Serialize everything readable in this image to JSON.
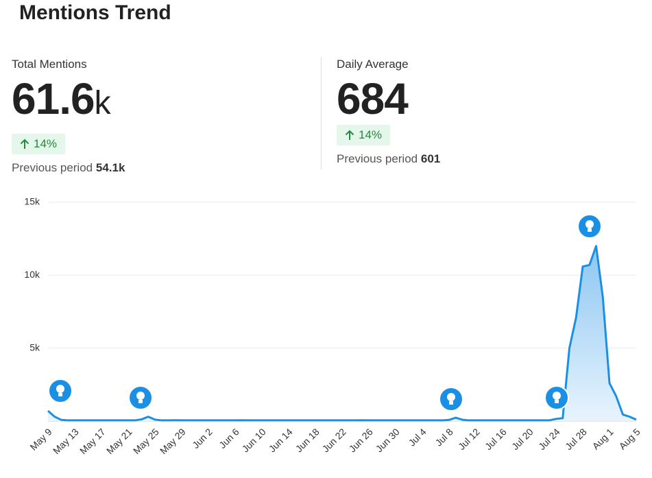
{
  "header": {
    "title": "Mentions Trend"
  },
  "stats": [
    {
      "label": "Total Mentions",
      "value": "61.6",
      "unit": "k",
      "change": "14%",
      "previous_label": "Previous period",
      "previous_value": "54.1k"
    },
    {
      "label": "Daily Average",
      "value": "684",
      "unit": null,
      "change": "14%",
      "previous_label": "Previous period",
      "previous_value": "601"
    }
  ],
  "chart_data": {
    "type": "area",
    "color": "#1a8fe3",
    "categories": [
      "May 9",
      null,
      null,
      null,
      "May 13",
      null,
      null,
      null,
      "May 17",
      null,
      null,
      null,
      "May 21",
      null,
      null,
      null,
      "May 25",
      null,
      null,
      null,
      "May 29",
      null,
      null,
      null,
      "Jun 2",
      null,
      null,
      null,
      "Jun 6",
      null,
      null,
      null,
      "Jun 10",
      null,
      null,
      null,
      "Jun 14",
      null,
      null,
      null,
      "Jun 18",
      null,
      null,
      null,
      "Jun 22",
      null,
      null,
      null,
      "Jun 26",
      null,
      null,
      null,
      "Jun 30",
      null,
      null,
      null,
      "Jul 4",
      null,
      null,
      null,
      "Jul 8",
      null,
      null,
      null,
      "Jul 12",
      null,
      null,
      null,
      "Jul 16",
      null,
      null,
      null,
      "Jul 20",
      null,
      null,
      null,
      "Jul 24",
      null,
      null,
      null,
      "Jul 28",
      null,
      null,
      null,
      "Aug 1",
      null,
      null,
      null,
      "Aug 5"
    ],
    "values": [
      700,
      300,
      80,
      50,
      50,
      50,
      50,
      50,
      50,
      50,
      50,
      50,
      50,
      50,
      120,
      300,
      100,
      50,
      50,
      60,
      50,
      50,
      50,
      50,
      50,
      50,
      50,
      50,
      50,
      60,
      50,
      50,
      50,
      50,
      50,
      50,
      50,
      50,
      50,
      50,
      50,
      50,
      50,
      50,
      50,
      50,
      50,
      60,
      50,
      50,
      50,
      50,
      50,
      50,
      50,
      50,
      50,
      50,
      50,
      50,
      80,
      230,
      90,
      50,
      50,
      50,
      50,
      50,
      50,
      50,
      50,
      50,
      50,
      50,
      50,
      50,
      150,
      200,
      5000,
      7100,
      10600,
      10700,
      12000,
      8500,
      2600,
      1700,
      450,
      300,
      100
    ],
    "ylim": [
      0,
      15000
    ],
    "yticks": [
      {
        "value": 5000,
        "label": "5k"
      },
      {
        "value": 10000,
        "label": "10k"
      },
      {
        "value": 15000,
        "label": "15k"
      }
    ],
    "grid": true
  }
}
